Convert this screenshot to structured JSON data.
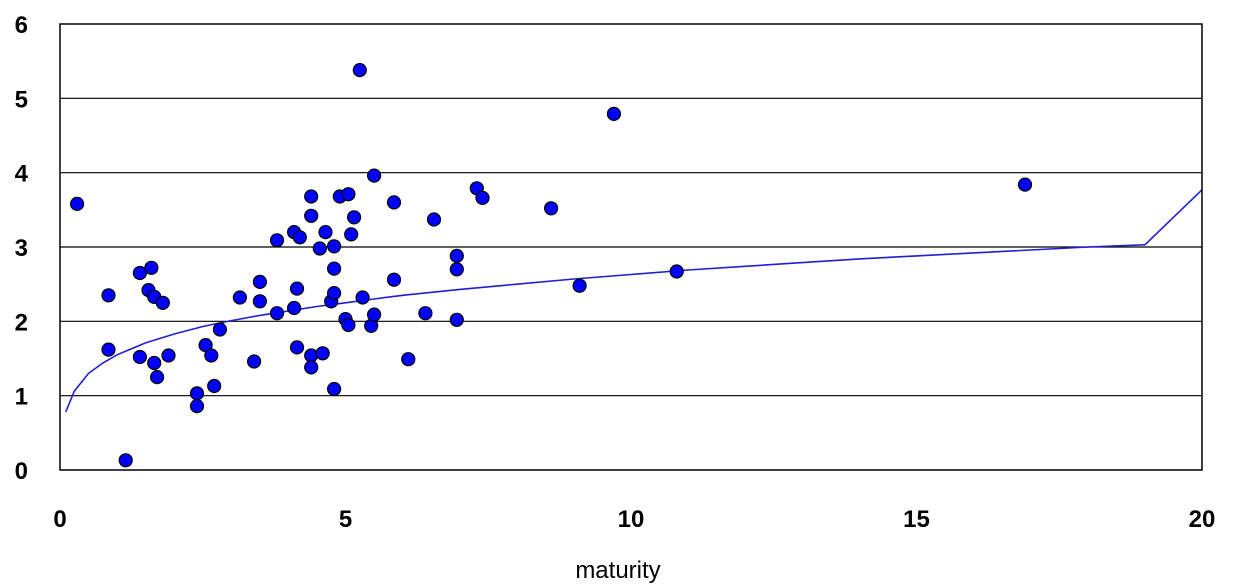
{
  "chart_data": {
    "type": "scatter",
    "title": "",
    "xlabel": "maturity",
    "ylabel": "",
    "xlim": [
      0,
      20
    ],
    "ylim": [
      0,
      6
    ],
    "xticks": [
      0,
      5,
      10,
      15,
      20
    ],
    "yticks": [
      0,
      1,
      2,
      3,
      4,
      5,
      6
    ],
    "grid": "horizontal",
    "legend": "none",
    "colors": {
      "points": "#0000ff",
      "point_outline": "#000000",
      "trend": "#1f1fd6",
      "frame": "#000000"
    },
    "series": [
      {
        "type": "scatter",
        "points": [
          [
            0.3,
            3.58
          ],
          [
            0.85,
            2.35
          ],
          [
            0.85,
            1.62
          ],
          [
            1.15,
            0.13
          ],
          [
            1.4,
            2.65
          ],
          [
            1.55,
            2.42
          ],
          [
            1.6,
            2.72
          ],
          [
            1.65,
            2.33
          ],
          [
            1.8,
            2.25
          ],
          [
            1.4,
            1.52
          ],
          [
            1.65,
            1.44
          ],
          [
            1.7,
            1.25
          ],
          [
            1.9,
            1.54
          ],
          [
            2.4,
            1.03
          ],
          [
            2.4,
            0.86
          ],
          [
            2.55,
            1.68
          ],
          [
            2.65,
            1.54
          ],
          [
            2.7,
            1.13
          ],
          [
            2.8,
            1.89
          ],
          [
            3.15,
            2.32
          ],
          [
            3.4,
            1.46
          ],
          [
            3.5,
            2.53
          ],
          [
            3.5,
            2.27
          ],
          [
            3.8,
            3.09
          ],
          [
            3.8,
            2.11
          ],
          [
            4.1,
            3.2
          ],
          [
            4.2,
            3.13
          ],
          [
            4.1,
            2.18
          ],
          [
            4.15,
            2.44
          ],
          [
            4.15,
            1.65
          ],
          [
            4.4,
            3.68
          ],
          [
            4.4,
            3.42
          ],
          [
            4.4,
            1.54
          ],
          [
            4.4,
            1.38
          ],
          [
            4.55,
            2.98
          ],
          [
            4.65,
            3.2
          ],
          [
            4.6,
            1.57
          ],
          [
            4.75,
            2.27
          ],
          [
            4.8,
            2.38
          ],
          [
            4.8,
            3.01
          ],
          [
            4.8,
            2.71
          ],
          [
            4.8,
            1.09
          ],
          [
            4.9,
            3.68
          ],
          [
            5.0,
            2.03
          ],
          [
            5.05,
            1.95
          ],
          [
            5.05,
            3.71
          ],
          [
            5.1,
            3.17
          ],
          [
            5.15,
            3.4
          ],
          [
            5.25,
            5.38
          ],
          [
            5.3,
            2.32
          ],
          [
            5.45,
            1.94
          ],
          [
            5.5,
            2.09
          ],
          [
            5.5,
            3.96
          ],
          [
            5.85,
            3.6
          ],
          [
            5.85,
            2.56
          ],
          [
            6.1,
            1.49
          ],
          [
            6.4,
            2.11
          ],
          [
            6.55,
            3.37
          ],
          [
            6.95,
            2.88
          ],
          [
            6.95,
            2.7
          ],
          [
            6.95,
            2.02
          ],
          [
            7.3,
            3.79
          ],
          [
            7.4,
            3.66
          ],
          [
            8.6,
            3.52
          ],
          [
            9.1,
            2.48
          ],
          [
            9.7,
            4.79
          ],
          [
            10.8,
            2.67
          ],
          [
            16.9,
            3.84
          ]
        ]
      },
      {
        "type": "line",
        "description_fn": "trend",
        "x": [
          0.1,
          0.25,
          0.5,
          0.75,
          1,
          1.5,
          2,
          2.5,
          3,
          3.5,
          4,
          4.5,
          5,
          5.5,
          6,
          7,
          8,
          9,
          10,
          11,
          12,
          13,
          14,
          15,
          16,
          17,
          18,
          19,
          20
        ],
        "y": [
          0.78,
          1.06,
          1.3,
          1.44,
          1.55,
          1.71,
          1.83,
          1.93,
          2.01,
          2.08,
          2.14,
          2.2,
          2.25,
          2.3,
          2.35,
          2.43,
          2.5,
          2.57,
          2.63,
          2.69,
          2.74,
          2.79,
          2.84,
          2.88,
          2.92,
          2.96,
          3.0,
          3.03,
          3.77
        ]
      }
    ]
  }
}
